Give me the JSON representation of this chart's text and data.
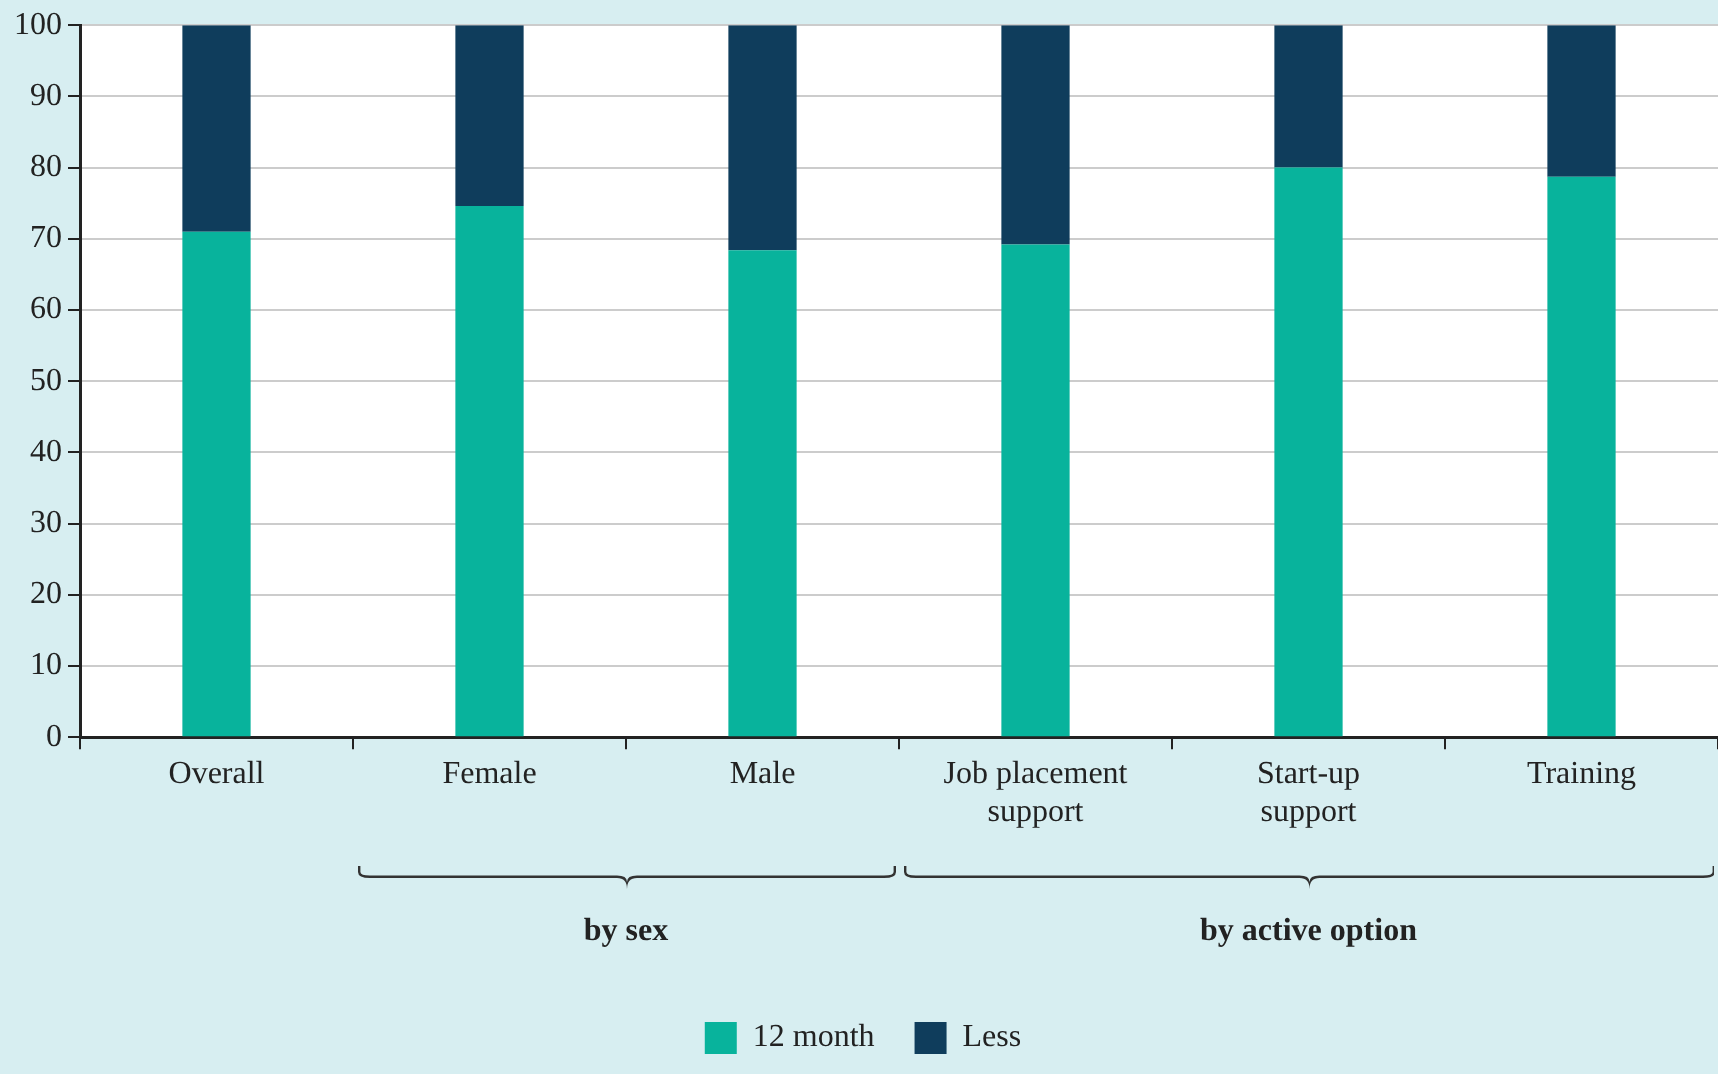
{
  "chart_data": {
    "type": "bar",
    "stacked": true,
    "categories": [
      "Overall",
      "Female",
      "Male",
      "Job placement support",
      "Start-up support",
      "Training"
    ],
    "series": [
      {
        "name": "12 month",
        "color": "#08b39c",
        "values": [
          71,
          74.6,
          68.4,
          69.2,
          80,
          78.7
        ]
      },
      {
        "name": "Less",
        "color": "#0f3d5c",
        "values": [
          29,
          25.4,
          31.6,
          30.8,
          20,
          21.3
        ]
      }
    ],
    "ylim": [
      0,
      100
    ],
    "yticks": [
      0,
      10,
      20,
      30,
      40,
      50,
      60,
      70,
      80,
      90,
      100
    ],
    "grid": "y",
    "legend": "bottom",
    "annotations": [
      "by sex",
      "by active option"
    ]
  }
}
